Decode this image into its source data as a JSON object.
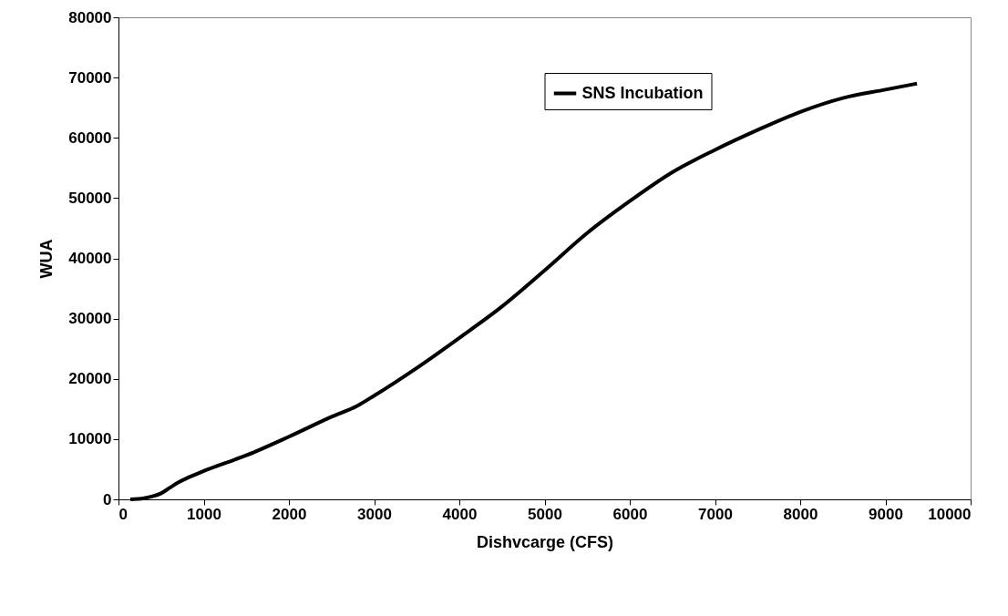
{
  "chart_data": {
    "type": "line",
    "xlabel": "Dishvcarge (CFS)",
    "ylabel": "WUA",
    "xlim": [
      0,
      10000
    ],
    "xticks": [
      0,
      1000,
      2000,
      3000,
      4000,
      5000,
      6000,
      7000,
      8000,
      9000,
      10000
    ],
    "ylim": [
      0,
      80000
    ],
    "yticks": [
      0,
      10000,
      20000,
      30000,
      40000,
      50000,
      60000,
      70000,
      80000
    ],
    "grid": false,
    "legend": "top right",
    "marker": "none",
    "line_style": "solid",
    "series": [
      {
        "name": "SNS Incubation",
        "color": "#000000",
        "x": [
          140,
          300,
          400,
          500,
          600,
          700,
          800,
          900,
          1000,
          1500,
          2000,
          2500,
          2800,
          3000,
          3500,
          4000,
          4500,
          5000,
          5500,
          6000,
          6500,
          7000,
          7500,
          8000,
          8500,
          9000,
          9370
        ],
        "values": [
          0,
          200,
          500,
          1000,
          1900,
          2800,
          3500,
          4100,
          4700,
          7300,
          10400,
          13700,
          15500,
          17200,
          21800,
          26800,
          32000,
          38000,
          44200,
          49500,
          54300,
          58000,
          61300,
          64300,
          66600,
          68000,
          69000
        ]
      }
    ]
  }
}
